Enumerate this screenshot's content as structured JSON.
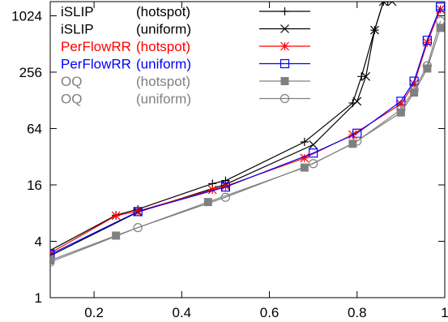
{
  "chart_data": {
    "type": "line",
    "title": "",
    "xlabel": "",
    "ylabel": "",
    "xlim": [
      0.1,
      1.0
    ],
    "ylim": [
      1,
      1450
    ],
    "yscale": "log2",
    "grid": false,
    "legend_position": "top-left",
    "x_ticks": [
      {
        "value": 0.2,
        "label": "0.2"
      },
      {
        "value": 0.4,
        "label": "0.4"
      },
      {
        "value": 0.6,
        "label": "0.6"
      },
      {
        "value": 0.8,
        "label": "0.8"
      },
      {
        "value": 1.0,
        "label": "1"
      }
    ],
    "y_ticks": [
      {
        "value": 1,
        "label": "1"
      },
      {
        "value": 4,
        "label": "4"
      },
      {
        "value": 16,
        "label": "16"
      },
      {
        "value": 64,
        "label": "64"
      },
      {
        "value": 256,
        "label": "256"
      },
      {
        "value": 1024,
        "label": "1024"
      }
    ],
    "series": [
      {
        "name": "iSLIP",
        "traffic": "(hotspot)",
        "color": "#000000",
        "marker": "plus",
        "x": [
          0.1,
          0.25,
          0.3,
          0.47,
          0.5,
          0.68,
          0.79,
          0.81,
          0.84,
          0.86,
          0.87
        ],
        "y": [
          3.2,
          7.6,
          8.8,
          16.5,
          17.8,
          46,
          120,
          230,
          720,
          1450,
          1450
        ]
      },
      {
        "name": "iSLIP",
        "traffic": "(uniform)",
        "color": "#000000",
        "marker": "cross",
        "x": [
          0.1,
          0.3,
          0.5,
          0.7,
          0.8,
          0.82,
          0.84,
          0.86,
          0.88
        ],
        "y": [
          2.8,
          8.2,
          16.2,
          43,
          125,
          230,
          720,
          1450,
          1450
        ]
      },
      {
        "name": "PerFlowRR",
        "traffic": "(hotspot)",
        "color": "#ff0000",
        "marker": "star",
        "x": [
          0.1,
          0.25,
          0.3,
          0.47,
          0.5,
          0.68,
          0.79,
          0.9,
          0.93,
          0.96,
          0.99
        ],
        "y": [
          3.0,
          7.5,
          8.4,
          14.2,
          15.5,
          31,
          55,
          117,
          192,
          530,
          1200
        ]
      },
      {
        "name": "PerFlowRR",
        "traffic": "(uniform)",
        "color": "#0000ff",
        "marker": "square",
        "x": [
          0.1,
          0.3,
          0.5,
          0.7,
          0.8,
          0.9,
          0.93,
          0.96,
          0.99
        ],
        "y": [
          2.9,
          8.3,
          15.2,
          35,
          57,
          125,
          205,
          560,
          1270
        ]
      },
      {
        "name": "OQ",
        "traffic": "(hotspot)",
        "color": "#808080",
        "marker": "filled-square",
        "x": [
          0.1,
          0.25,
          0.46,
          0.68,
          0.79,
          0.9,
          0.93,
          0.96,
          0.99
        ],
        "y": [
          2.5,
          4.6,
          10.5,
          24.5,
          44,
          95,
          155,
          280,
          760
        ]
      },
      {
        "name": "OQ",
        "traffic": "(uniform)",
        "color": "#808080",
        "marker": "circle",
        "x": [
          0.1,
          0.3,
          0.5,
          0.7,
          0.8,
          0.9,
          0.93,
          0.96,
          0.99
        ],
        "y": [
          2.4,
          5.6,
          11.8,
          27,
          47,
          102,
          165,
          300,
          900
        ]
      }
    ]
  }
}
